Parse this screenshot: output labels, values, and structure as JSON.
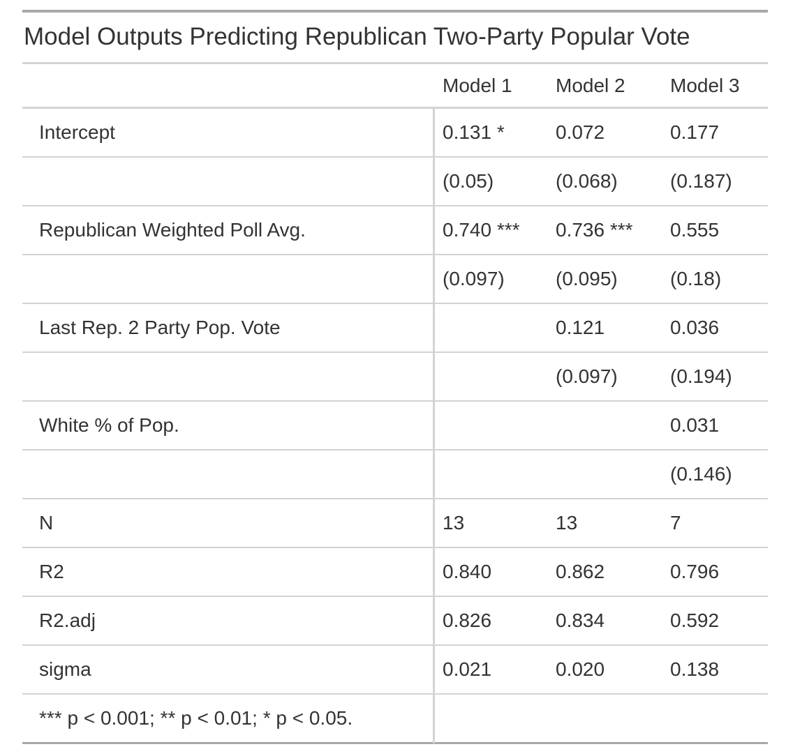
{
  "table": {
    "title": "Model Outputs Predicting Republican Two-Party Popular Vote",
    "columns": [
      "Model 1",
      "Model 2",
      "Model 3"
    ],
    "rows": [
      {
        "label": "Intercept",
        "values": [
          "0.131 *",
          "0.072",
          "0.177"
        ]
      },
      {
        "label": "",
        "values": [
          "(0.05)",
          "(0.068)",
          "(0.187)"
        ]
      },
      {
        "label": "Republican Weighted Poll Avg.",
        "values": [
          "0.740 ***",
          "0.736 ***",
          "0.555"
        ]
      },
      {
        "label": "",
        "values": [
          "(0.097)",
          "(0.095)",
          "(0.18)"
        ]
      },
      {
        "label": "Last Rep. 2 Party Pop. Vote",
        "values": [
          "",
          "0.121",
          "0.036"
        ]
      },
      {
        "label": "",
        "values": [
          "",
          "(0.097)",
          "(0.194)"
        ]
      },
      {
        "label": "White % of Pop.",
        "values": [
          "",
          "",
          "0.031"
        ]
      },
      {
        "label": "",
        "values": [
          "",
          "",
          "(0.146)"
        ]
      },
      {
        "label": "N",
        "values": [
          "13",
          "13",
          "7"
        ]
      },
      {
        "label": "R2",
        "values": [
          "0.840",
          "0.862",
          "0.796"
        ]
      },
      {
        "label": "R2.adj",
        "values": [
          "0.826",
          "0.834",
          "0.592"
        ]
      },
      {
        "label": "sigma",
        "values": [
          "0.021",
          "0.020",
          "0.138"
        ]
      }
    ],
    "footnote": "*** p < 0.001; ** p < 0.01; * p < 0.05."
  }
}
